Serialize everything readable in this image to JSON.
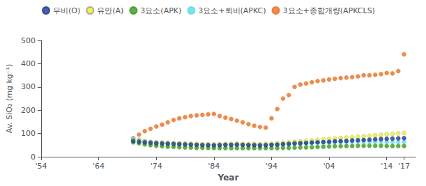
{
  "chart_data": {
    "type": "scatter",
    "xlabel": "Year",
    "ylabel": "Av. SiO₂ (mg kg⁻¹)",
    "xlim": [
      1954,
      2019
    ],
    "ylim": [
      0,
      500
    ],
    "xticks": [
      {
        "value": 1954,
        "label": "'54"
      },
      {
        "value": 1964,
        "label": "'64"
      },
      {
        "value": 1974,
        "label": "'74"
      },
      {
        "value": 1984,
        "label": "'84"
      },
      {
        "value": 1994,
        "label": "'94"
      },
      {
        "value": 2004,
        "label": "'04"
      },
      {
        "value": 2014,
        "label": "'14"
      },
      {
        "value": 2017,
        "label": "'17"
      }
    ],
    "yticks": [
      0,
      100,
      200,
      300,
      400,
      500
    ],
    "grid": false,
    "legend": "upper left",
    "marker": "circle",
    "x": [
      1970,
      1971,
      1972,
      1973,
      1974,
      1975,
      1976,
      1977,
      1978,
      1979,
      1980,
      1981,
      1982,
      1983,
      1984,
      1985,
      1986,
      1987,
      1988,
      1989,
      1990,
      1991,
      1992,
      1993,
      1994,
      1995,
      1996,
      1997,
      1998,
      1999,
      2000,
      2001,
      2002,
      2003,
      2004,
      2005,
      2006,
      2007,
      2008,
      2009,
      2010,
      2011,
      2012,
      2013,
      2014,
      2015,
      2016,
      2017
    ],
    "series": [
      {
        "name": "무비(O)",
        "color": "#1c3a8a",
        "values": [
          68,
          65,
          62,
          60,
          58,
          57,
          56,
          55,
          54,
          53,
          52,
          51,
          50,
          50,
          49,
          50,
          51,
          51,
          52,
          51,
          50,
          50,
          49,
          50,
          51,
          52,
          54,
          55,
          57,
          58,
          59,
          61,
          62,
          63,
          64,
          66,
          67,
          68,
          70,
          71,
          72,
          73,
          75,
          76,
          77,
          78,
          79,
          80
        ]
      },
      {
        "name": "유안(A)",
        "color": "#f0f020",
        "values": [
          72,
          69,
          66,
          63,
          62,
          61,
          60,
          59,
          58,
          57,
          56,
          55,
          54,
          54,
          53,
          54,
          55,
          55,
          56,
          55,
          54,
          55,
          54,
          55,
          56,
          58,
          60,
          62,
          64,
          66,
          68,
          70,
          72,
          74,
          76,
          78,
          80,
          82,
          84,
          86,
          88,
          90,
          92,
          94,
          96,
          98,
          100,
          102
        ]
      },
      {
        "name": "3요소(APK)",
        "color": "#3a9a20",
        "values": [
          62,
          58,
          53,
          50,
          47,
          45,
          43,
          42,
          41,
          40,
          39,
          38,
          38,
          38,
          37,
          37,
          37,
          37,
          37,
          37,
          37,
          37,
          37,
          37,
          37,
          37,
          38,
          38,
          39,
          40,
          40,
          41,
          42,
          43,
          44,
          45,
          45,
          46,
          46,
          47,
          47,
          47,
          47,
          47,
          46,
          46,
          46,
          46
        ]
      },
      {
        "name": "3요소+퇴비(APKC)",
        "color": "#60d8e8",
        "values": [
          78,
          73,
          68,
          64,
          61,
          59,
          57,
          56,
          55,
          54,
          53,
          52,
          52,
          52,
          51,
          52,
          52,
          52,
          52,
          52,
          52,
          51,
          51,
          51,
          52,
          53,
          54,
          56,
          57,
          58,
          59,
          60,
          61,
          62,
          62,
          63,
          63,
          64,
          64,
          65,
          65,
          65,
          65,
          65,
          64,
          64,
          64,
          64
        ]
      },
      {
        "name": "3요소+종합개량(APKCLS)",
        "color": "#e87020",
        "values": [
          80,
          95,
          110,
          120,
          130,
          138,
          148,
          158,
          165,
          170,
          175,
          178,
          180,
          182,
          184,
          175,
          168,
          162,
          155,
          148,
          140,
          133,
          128,
          125,
          165,
          205,
          250,
          265,
          300,
          310,
          315,
          320,
          325,
          328,
          332,
          335,
          338,
          340,
          342,
          345,
          350,
          350,
          352,
          355,
          360,
          358,
          368,
          440
        ]
      }
    ]
  }
}
